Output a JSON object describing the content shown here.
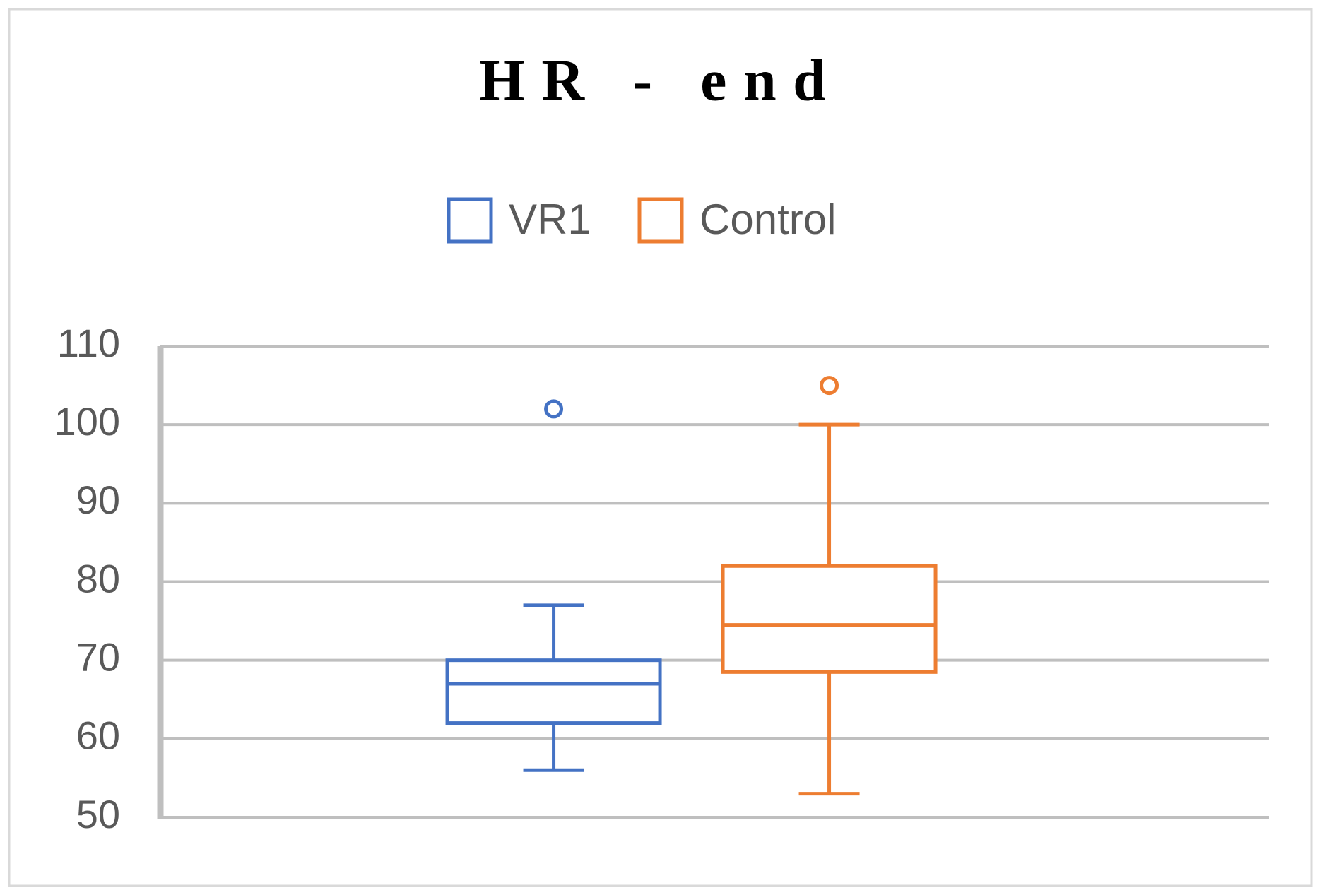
{
  "chart_data": {
    "type": "box",
    "title": "HR - end",
    "series": [
      {
        "name": "VR1",
        "color": "#4472c4",
        "min": 56,
        "q1": 62,
        "median": 67,
        "q3": 70,
        "max": 77,
        "outliers": [
          102
        ]
      },
      {
        "name": "Control",
        "color": "#ed7d31",
        "min": 53,
        "q1": 68.5,
        "median": 74.5,
        "q3": 82,
        "max": 100,
        "outliers": [
          105
        ]
      }
    ],
    "ylim": [
      50,
      110
    ],
    "yticks": [
      50,
      60,
      70,
      80,
      90,
      100,
      110
    ],
    "grid": true,
    "legend": "top"
  }
}
